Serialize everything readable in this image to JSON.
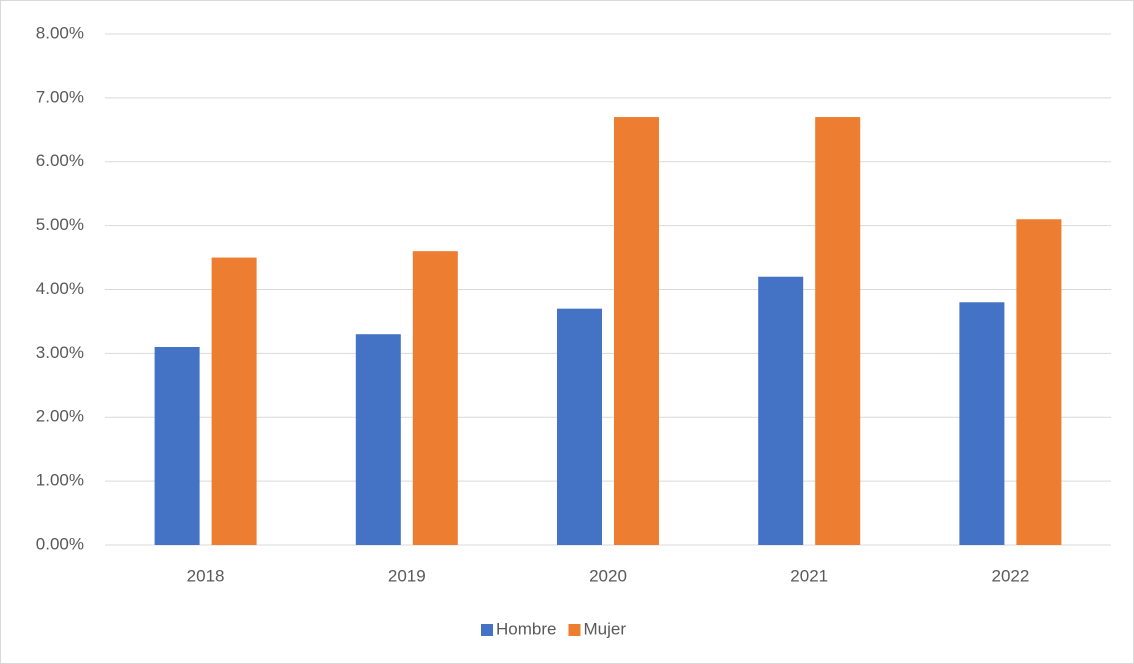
{
  "chart_data": {
    "type": "bar",
    "categories": [
      "2018",
      "2019",
      "2020",
      "2021",
      "2022"
    ],
    "series": [
      {
        "name": "Hombre",
        "color": "#4472c4",
        "values": [
          3.1,
          3.3,
          3.7,
          4.2,
          3.8
        ]
      },
      {
        "name": "Mujer",
        "color": "#ed7d31",
        "values": [
          4.5,
          4.6,
          6.7,
          6.7,
          5.1
        ]
      }
    ],
    "ylim": [
      0,
      8
    ],
    "yticks": [
      {
        "value": 0,
        "label": "0.00%"
      },
      {
        "value": 1,
        "label": "1.00%"
      },
      {
        "value": 2,
        "label": "2.00%"
      },
      {
        "value": 3,
        "label": "3.00%"
      },
      {
        "value": 4,
        "label": "4.00%"
      },
      {
        "value": 5,
        "label": "5.00%"
      },
      {
        "value": 6,
        "label": "6.00%"
      },
      {
        "value": 7,
        "label": "7.00%"
      },
      {
        "value": 8,
        "label": "8.00%"
      }
    ],
    "grid": true,
    "legend": "bottom"
  }
}
